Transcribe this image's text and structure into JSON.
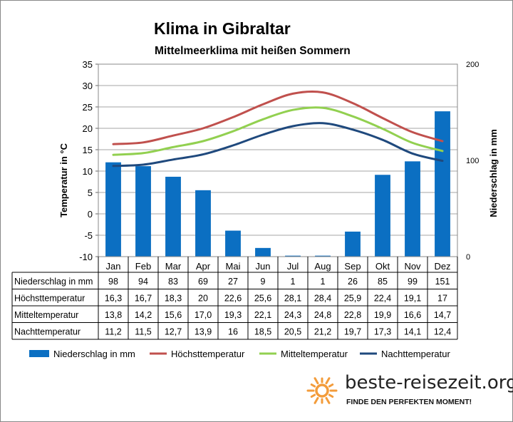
{
  "colors": {
    "bar": "#0b6fc2",
    "max_temp": "#c0504d",
    "mean_temp": "#92d050",
    "night_temp": "#1f497d",
    "grid": "#a6a6a6",
    "logo_sun": "#f39c3b"
  },
  "chart_data": {
    "type": "bar",
    "title": "Klima in Gibraltar",
    "subtitle": "Mittelmeerklima mit heißen Sommern",
    "categories": [
      "Jan",
      "Feb",
      "Mar",
      "Apr",
      "Mai",
      "Jun",
      "Jul",
      "Aug",
      "Sep",
      "Okt",
      "Nov",
      "Dez"
    ],
    "y_left": {
      "label": "Temperatur in °C",
      "min": -10,
      "max": 35,
      "ticks": [
        "35",
        "30",
        "25",
        "20",
        "15",
        "10",
        "5",
        "0",
        "-5",
        "-10"
      ]
    },
    "y_right": {
      "label": "Niederschlag in mm",
      "min": 0,
      "max": 200,
      "ticks": [
        "200",
        "100",
        "0"
      ]
    },
    "grid": true,
    "legend_position": "bottom",
    "series": [
      {
        "name": "Niederschlag in mm",
        "table_label": "Niederschlag in mm",
        "type": "bar",
        "axis": "right",
        "values": [
          98,
          94,
          83,
          69,
          27,
          9,
          1,
          1,
          26,
          85,
          99,
          151
        ],
        "display": [
          "98",
          "94",
          "83",
          "69",
          "27",
          "9",
          "1",
          "1",
          "26",
          "85",
          "99",
          "151"
        ]
      },
      {
        "name": "Höchsttemperatur",
        "table_label": "Höchsttemperatur",
        "type": "line",
        "axis": "left",
        "values": [
          16.3,
          16.7,
          18.3,
          20,
          22.6,
          25.6,
          28.1,
          28.4,
          25.9,
          22.4,
          19.1,
          17
        ],
        "display": [
          "16,3",
          "16,7",
          "18,3",
          "20",
          "22,6",
          "25,6",
          "28,1",
          "28,4",
          "25,9",
          "22,4",
          "19,1",
          "17"
        ]
      },
      {
        "name": "Mitteltemperatur",
        "table_label": "Mitteltemperatur",
        "type": "line",
        "axis": "left",
        "values": [
          13.8,
          14.2,
          15.6,
          17.0,
          19.3,
          22.1,
          24.3,
          24.8,
          22.8,
          19.9,
          16.6,
          14.7
        ],
        "display": [
          "13,8",
          "14,2",
          "15,6",
          "17,0",
          "19,3",
          "22,1",
          "24,3",
          "24,8",
          "22,8",
          "19,9",
          "16,6",
          "14,7"
        ]
      },
      {
        "name": "Nachttemperatur",
        "table_label": "Nachttemperatur",
        "type": "line",
        "axis": "left",
        "values": [
          11.2,
          11.5,
          12.7,
          13.9,
          16,
          18.5,
          20.5,
          21.2,
          19.7,
          17.3,
          14.1,
          12.4
        ],
        "display": [
          "11,2",
          "11,5",
          "12,7",
          "13,9",
          "16",
          "18,5",
          "20,5",
          "21,2",
          "19,7",
          "17,3",
          "14,1",
          "12,4"
        ]
      }
    ]
  },
  "branding": {
    "logo_icon": "sun-icon",
    "site_name": "beste-reisezeit.org",
    "slogan": "FINDE DEN PERFEKTEN MOMENT!"
  }
}
